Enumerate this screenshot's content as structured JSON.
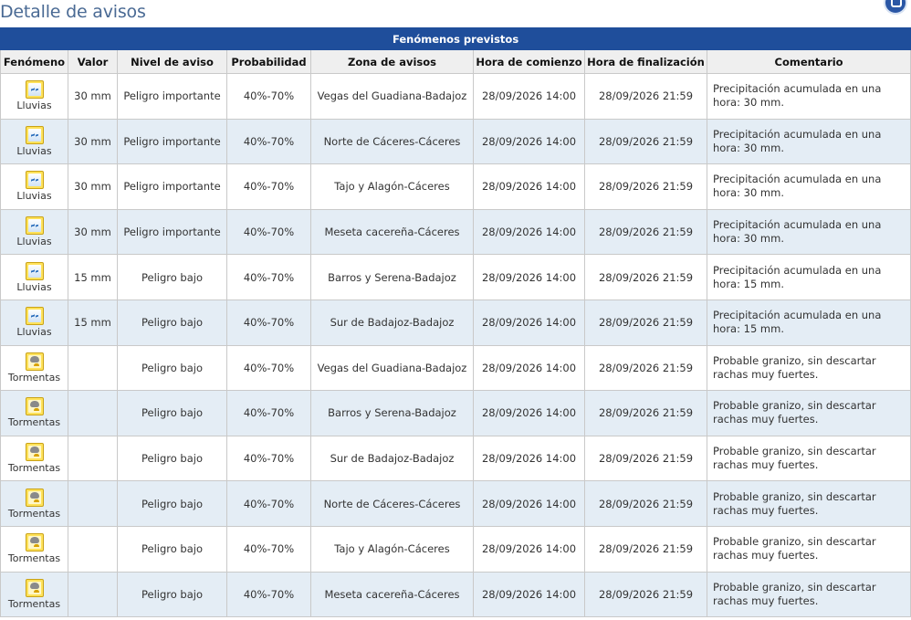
{
  "page": {
    "title": "Detalle de avisos"
  },
  "table": {
    "caption": "Fenómenos previstos",
    "columns": [
      "Fenómeno",
      "Valor",
      "Nivel de aviso",
      "Probabilidad",
      "Zona de avisos",
      "Hora de comienzo",
      "Hora de finalización",
      "Comentario"
    ],
    "rows": [
      {
        "icon": "rain-icon",
        "phenomenon": "Lluvias",
        "value": "30 mm",
        "level": "Peligro importante",
        "probability": "40%-70%",
        "zone": "Vegas del Guadiana-Badajoz",
        "start": "28/09/2026 14:00",
        "end": "28/09/2026 21:59",
        "comment": "Precipitación acumulada en una hora: 30 mm."
      },
      {
        "icon": "rain-icon",
        "phenomenon": "Lluvias",
        "value": "30 mm",
        "level": "Peligro importante",
        "probability": "40%-70%",
        "zone": "Norte de Cáceres-Cáceres",
        "start": "28/09/2026 14:00",
        "end": "28/09/2026 21:59",
        "comment": "Precipitación acumulada en una hora: 30 mm."
      },
      {
        "icon": "rain-icon",
        "phenomenon": "Lluvias",
        "value": "30 mm",
        "level": "Peligro importante",
        "probability": "40%-70%",
        "zone": "Tajo y Alagón-Cáceres",
        "start": "28/09/2026 14:00",
        "end": "28/09/2026 21:59",
        "comment": "Precipitación acumulada en una hora: 30 mm."
      },
      {
        "icon": "rain-icon",
        "phenomenon": "Lluvias",
        "value": "30 mm",
        "level": "Peligro importante",
        "probability": "40%-70%",
        "zone": "Meseta cacereña-Cáceres",
        "start": "28/09/2026 14:00",
        "end": "28/09/2026 21:59",
        "comment": "Precipitación acumulada en una hora: 30 mm."
      },
      {
        "icon": "rain-icon",
        "phenomenon": "Lluvias",
        "value": "15 mm",
        "level": "Peligro bajo",
        "probability": "40%-70%",
        "zone": "Barros y Serena-Badajoz",
        "start": "28/09/2026 14:00",
        "end": "28/09/2026 21:59",
        "comment": "Precipitación acumulada en una hora: 15 mm."
      },
      {
        "icon": "rain-icon",
        "phenomenon": "Lluvias",
        "value": "15 mm",
        "level": "Peligro bajo",
        "probability": "40%-70%",
        "zone": "Sur de Badajoz-Badajoz",
        "start": "28/09/2026 14:00",
        "end": "28/09/2026 21:59",
        "comment": "Precipitación acumulada en una hora: 15 mm."
      },
      {
        "icon": "storm-icon",
        "phenomenon": "Tormentas",
        "value": "",
        "level": "Peligro bajo",
        "probability": "40%-70%",
        "zone": "Vegas del Guadiana-Badajoz",
        "start": "28/09/2026 14:00",
        "end": "28/09/2026 21:59",
        "comment": "Probable granizo, sin descartar rachas muy fuertes."
      },
      {
        "icon": "storm-icon",
        "phenomenon": "Tormentas",
        "value": "",
        "level": "Peligro bajo",
        "probability": "40%-70%",
        "zone": "Barros y Serena-Badajoz",
        "start": "28/09/2026 14:00",
        "end": "28/09/2026 21:59",
        "comment": "Probable granizo, sin descartar rachas muy fuertes."
      },
      {
        "icon": "storm-icon",
        "phenomenon": "Tormentas",
        "value": "",
        "level": "Peligro bajo",
        "probability": "40%-70%",
        "zone": "Sur de Badajoz-Badajoz",
        "start": "28/09/2026 14:00",
        "end": "28/09/2026 21:59",
        "comment": "Probable granizo, sin descartar rachas muy fuertes."
      },
      {
        "icon": "storm-icon",
        "phenomenon": "Tormentas",
        "value": "",
        "level": "Peligro bajo",
        "probability": "40%-70%",
        "zone": "Norte de Cáceres-Cáceres",
        "start": "28/09/2026 14:00",
        "end": "28/09/2026 21:59",
        "comment": "Probable granizo, sin descartar rachas muy fuertes."
      },
      {
        "icon": "storm-icon",
        "phenomenon": "Tormentas",
        "value": "",
        "level": "Peligro bajo",
        "probability": "40%-70%",
        "zone": "Tajo y Alagón-Cáceres",
        "start": "28/09/2026 14:00",
        "end": "28/09/2026 21:59",
        "comment": "Probable granizo, sin descartar rachas muy fuertes."
      },
      {
        "icon": "storm-icon",
        "phenomenon": "Tormentas",
        "value": "",
        "level": "Peligro bajo",
        "probability": "40%-70%",
        "zone": "Meseta cacereña-Cáceres",
        "start": "28/09/2026 14:00",
        "end": "28/09/2026 21:59",
        "comment": "Probable granizo, sin descartar rachas muy fuertes."
      }
    ]
  },
  "corner": {
    "icon": "print-icon"
  }
}
